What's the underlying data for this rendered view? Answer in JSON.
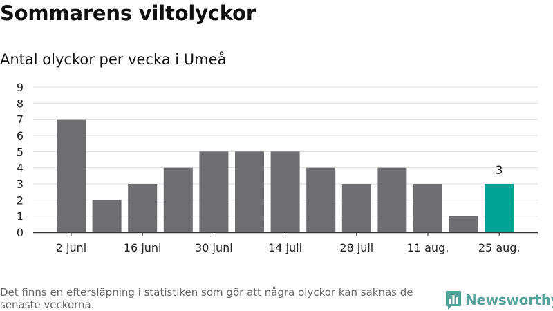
{
  "title": "Sommarens viltolyckor",
  "subtitle": "Antal olyckor per vecka i Umeå",
  "footnote": "Det finns en eftersläpning i statistiken som gör att några olyckor kan saknas de senaste veckorna.",
  "brand": {
    "name": "Newsworthy",
    "color": "#54a299",
    "icon": "bar-chart-badge-icon"
  },
  "colors": {
    "bar": "#6e6d72",
    "highlight": "#00a396",
    "grid": "#dddddd",
    "axis": "#333333"
  },
  "chart_data": {
    "type": "bar",
    "title": "Sommarens viltolyckor",
    "subtitle": "Antal olyckor per vecka i Umeå",
    "xlabel": "",
    "ylabel": "",
    "categories": [
      "2 juni",
      "",
      "16 juni",
      "",
      "30 juni",
      "",
      "14 juli",
      "",
      "28 juli",
      "",
      "11 aug.",
      "",
      "25 aug."
    ],
    "values": [
      7,
      2,
      3,
      4,
      5,
      5,
      5,
      4,
      3,
      4,
      3,
      1,
      3
    ],
    "highlight_index": 12,
    "data_labels": [
      {
        "index": 12,
        "text": "3"
      }
    ],
    "ylim": [
      0,
      9
    ],
    "yticks": [
      0,
      1,
      2,
      3,
      4,
      5,
      6,
      7,
      8,
      9
    ],
    "grid": true,
    "legend": "none"
  }
}
